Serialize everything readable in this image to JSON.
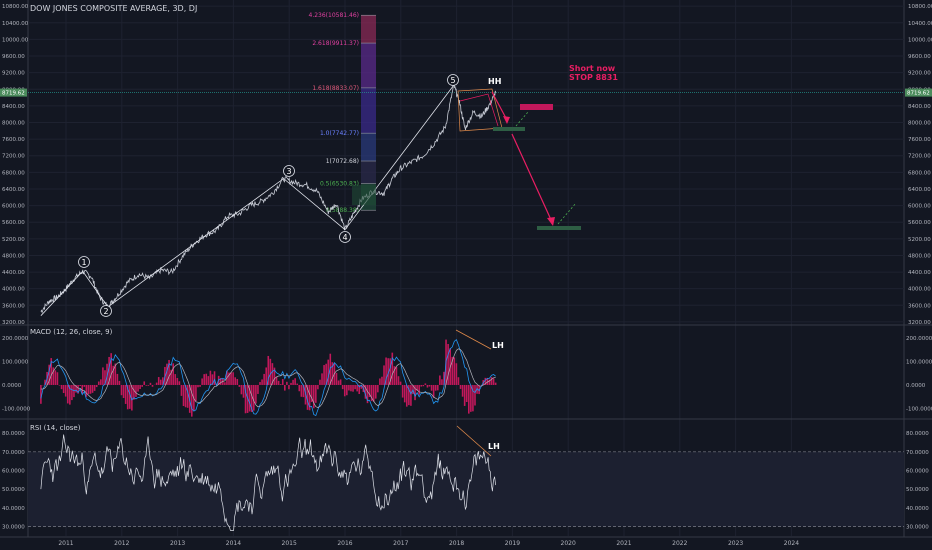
{
  "chart_data": {
    "type": "line",
    "title": "DOW JONES COMPOSITE AVERAGE, 3D, DJ",
    "x_ticks": [
      "2011",
      "2012",
      "2013",
      "2014",
      "2015",
      "2016",
      "2017",
      "2018",
      "2019",
      "2020",
      "2021",
      "2022",
      "2023",
      "2024"
    ],
    "price_ticks": [
      3200,
      3600,
      4000,
      4400,
      4800,
      5200,
      5600,
      6000,
      6400,
      6800,
      7200,
      7600,
      8000,
      8400,
      8800,
      9200,
      9600,
      10000,
      10400,
      10800
    ],
    "price_tick_labels": [
      "3200.00",
      "3600.00",
      "4000.00",
      "4400.00",
      "4800.00",
      "5200.00",
      "5600.00",
      "6000.00",
      "6400.00",
      "6800.00",
      "7200.00",
      "7600.00",
      "8000.00",
      "8400.00",
      "8800.00",
      "9200.00",
      "9600.00",
      "10000.00",
      "10400.00",
      "10800.00"
    ],
    "price_range": [
      3150,
      10900
    ],
    "current_price": 8719.62,
    "current_price_label": "8719.62",
    "wave_labels": [
      {
        "label": "1",
        "t": 2011.3,
        "price": 4420
      },
      {
        "label": "2",
        "t": 2011.75,
        "price": 3560
      },
      {
        "label": "3",
        "t": 2014.9,
        "price": 6650
      },
      {
        "label": "4",
        "t": 2016.0,
        "price": 5420
      },
      {
        "label": "5",
        "t": 2017.95,
        "price": 8900
      }
    ],
    "fib_levels": [
      {
        "label": "4.236(10581.46)",
        "price": 10581.46
      },
      {
        "label": "2.618(9911.37)",
        "price": 9911.37
      },
      {
        "label": "1.618(8833.07)",
        "price": 8833.07
      },
      {
        "label": "1.0(7742.77)",
        "price": 7742.77
      },
      {
        "label": "1(7072.68)",
        "price": 7072.68
      },
      {
        "label": "0.5(6530.83)",
        "price": 6530.83
      },
      {
        "label": "0(5888.38)",
        "price": 5888.38
      }
    ],
    "annotations": {
      "hh": "HH",
      "short_line1": "Short now",
      "short_line2": "STOP 8831",
      "macd_lh": "LH",
      "rsi_lh": "LH"
    },
    "macd": {
      "title": "MACD (12, 26, close, 9)",
      "ticks": [
        200,
        100,
        0,
        -100
      ],
      "tick_labels": [
        "200.0000",
        "100.0000",
        "0.0000",
        "-100.0000"
      ],
      "range": [
        -140,
        250
      ]
    },
    "rsi": {
      "title": "RSI (14, close)",
      "ticks": [
        80,
        70,
        60,
        50,
        40,
        30
      ],
      "tick_labels": [
        "80.0000",
        "70.0000",
        "60.0000",
        "50.0000",
        "40.0000",
        "30.0000"
      ],
      "range": [
        25,
        87
      ],
      "upper_band": 70,
      "lower_band": 30
    },
    "price_series": [
      [
        2010.55,
        3450
      ],
      [
        2010.7,
        3700
      ],
      [
        2010.85,
        3800
      ],
      [
        2011.0,
        4000
      ],
      [
        2011.15,
        4250
      ],
      [
        2011.3,
        4420
      ],
      [
        2011.45,
        4300
      ],
      [
        2011.6,
        3800
      ],
      [
        2011.75,
        3560
      ],
      [
        2011.9,
        3800
      ],
      [
        2012.1,
        4150
      ],
      [
        2012.3,
        4350
      ],
      [
        2012.5,
        4250
      ],
      [
        2012.7,
        4450
      ],
      [
        2012.9,
        4400
      ],
      [
        2013.1,
        4800
      ],
      [
        2013.3,
        5100
      ],
      [
        2013.5,
        5300
      ],
      [
        2013.7,
        5400
      ],
      [
        2013.9,
        5750
      ],
      [
        2014.1,
        5800
      ],
      [
        2014.3,
        6000
      ],
      [
        2014.5,
        6100
      ],
      [
        2014.7,
        6300
      ],
      [
        2014.9,
        6650
      ],
      [
        2015.1,
        6550
      ],
      [
        2015.3,
        6500
      ],
      [
        2015.5,
        6350
      ],
      [
        2015.7,
        5850
      ],
      [
        2015.85,
        6050
      ],
      [
        2016.0,
        5420
      ],
      [
        2016.15,
        5800
      ],
      [
        2016.3,
        6150
      ],
      [
        2016.5,
        6350
      ],
      [
        2016.7,
        6300
      ],
      [
        2016.85,
        6650
      ],
      [
        2017.0,
        6900
      ],
      [
        2017.2,
        7050
      ],
      [
        2017.4,
        7200
      ],
      [
        2017.6,
        7500
      ],
      [
        2017.8,
        7900
      ],
      [
        2017.95,
        8900
      ],
      [
        2018.05,
        8500
      ],
      [
        2018.15,
        7850
      ],
      [
        2018.3,
        8250
      ],
      [
        2018.45,
        8150
      ],
      [
        2018.6,
        8450
      ],
      [
        2018.7,
        8719.62
      ]
    ]
  }
}
